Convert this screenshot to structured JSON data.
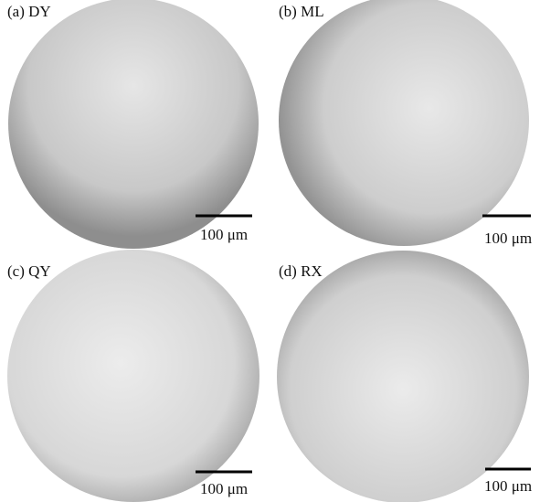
{
  "panels": [
    {
      "label": "(a) DY",
      "scale_bar": "100 μm"
    },
    {
      "label": "(b) ML",
      "scale_bar": "100 μm"
    },
    {
      "label": "(c) QY",
      "scale_bar": "100 μm"
    },
    {
      "label": "(d) RX",
      "scale_bar": "100 μm"
    }
  ]
}
